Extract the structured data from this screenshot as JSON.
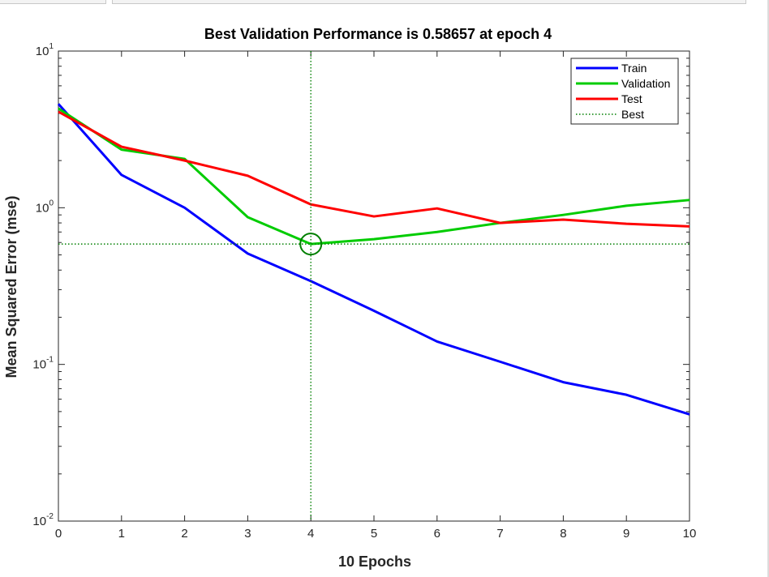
{
  "window": {
    "tabs": [
      "",
      ""
    ]
  },
  "chart_data": {
    "type": "line",
    "title": "Best Validation Performance is 0.58657 at epoch 4",
    "xlabel": "10 Epochs",
    "ylabel": "Mean Squared Error  (mse)",
    "yscale": "log",
    "xlim": [
      0,
      10
    ],
    "ylim": [
      0.01,
      10
    ],
    "x": [
      0,
      1,
      2,
      3,
      4,
      5,
      6,
      7,
      8,
      9,
      10
    ],
    "x_ticks": [
      0,
      1,
      2,
      3,
      4,
      5,
      6,
      7,
      8,
      9,
      10
    ],
    "y_ticks": [
      {
        "value": 10,
        "base": "10",
        "exp": "1"
      },
      {
        "value": 1,
        "base": "10",
        "exp": "0"
      },
      {
        "value": 0.1,
        "base": "10",
        "exp": "-1"
      },
      {
        "value": 0.01,
        "base": "10",
        "exp": "-2"
      }
    ],
    "series": [
      {
        "name": "Train",
        "color": "#0000ff",
        "values": [
          4.6,
          1.62,
          1.0,
          0.51,
          0.34,
          0.22,
          0.14,
          0.104,
          0.077,
          0.064,
          0.048
        ]
      },
      {
        "name": "Validation",
        "color": "#00cc00",
        "values": [
          4.3,
          2.35,
          2.05,
          0.87,
          0.58657,
          0.63,
          0.7,
          0.8,
          0.9,
          1.03,
          1.12
        ]
      },
      {
        "name": "Test",
        "color": "#ff0000",
        "values": [
          4.1,
          2.45,
          2.0,
          1.6,
          1.05,
          0.88,
          0.99,
          0.8,
          0.84,
          0.79,
          0.76
        ]
      }
    ],
    "best": {
      "name": "Best",
      "epoch": 4,
      "value": 0.58657,
      "color": "#007f00",
      "style": "dotted"
    },
    "legend": {
      "position": "top-right",
      "entries": [
        "Train",
        "Validation",
        "Test",
        "Best"
      ]
    },
    "grid": false
  }
}
